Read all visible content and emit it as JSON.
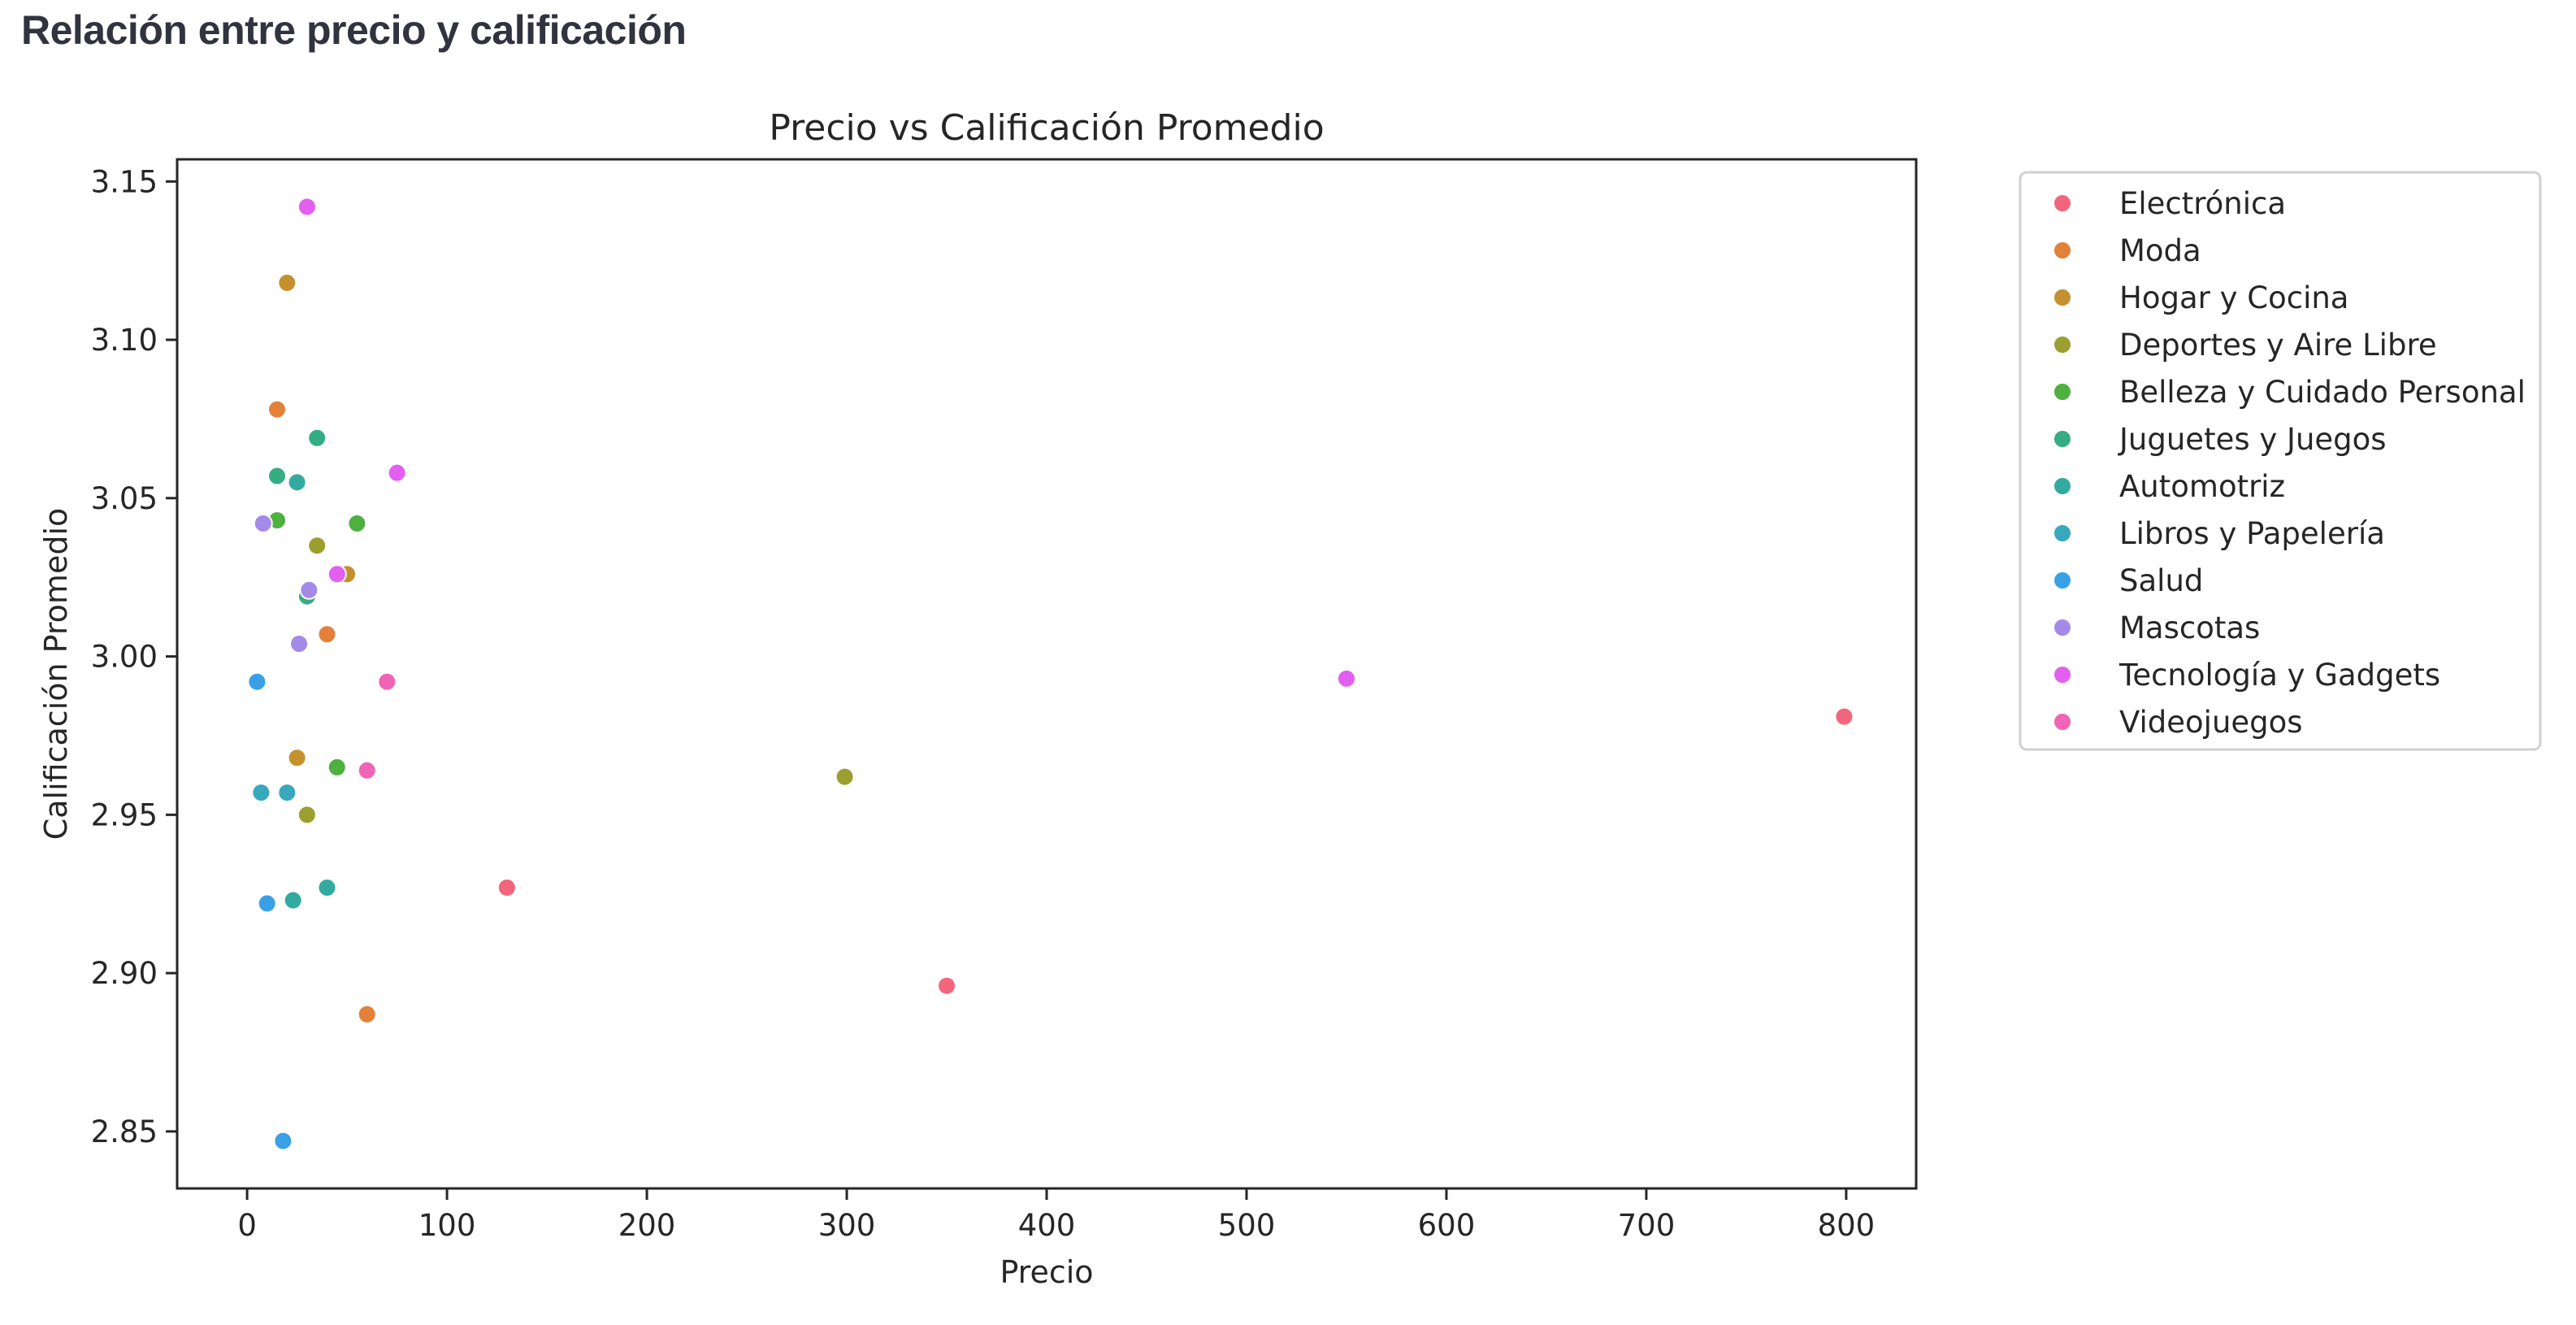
{
  "page": {
    "section_title": "Relación entre precio y calificación"
  },
  "chart_data": {
    "type": "scatter",
    "title": "Precio vs Calificación Promedio",
    "xlabel": "Precio",
    "ylabel": "Calificación Promedio",
    "xlim": [
      -35,
      835
    ],
    "ylim": [
      2.832,
      3.157
    ],
    "xticks": [
      0,
      100,
      200,
      300,
      400,
      500,
      600,
      700,
      800
    ],
    "yticks": [
      2.85,
      2.9,
      2.95,
      3.0,
      3.05,
      3.1,
      3.15
    ],
    "ytick_labels": [
      "2.85",
      "2.90",
      "2.95",
      "3.00",
      "3.05",
      "3.10",
      "3.15"
    ],
    "legend_position": "outside right, top",
    "grid": false,
    "series": [
      {
        "name": "Electrónica",
        "color": "#f1667c",
        "points": [
          [
            130,
            2.927
          ],
          [
            350,
            2.896
          ],
          [
            799,
            2.981
          ]
        ]
      },
      {
        "name": "Moda",
        "color": "#e38039",
        "points": [
          [
            15,
            3.078
          ],
          [
            40,
            3.007
          ],
          [
            60,
            2.887
          ]
        ]
      },
      {
        "name": "Hogar y Cocina",
        "color": "#c4912e",
        "points": [
          [
            20,
            3.118
          ],
          [
            50,
            3.026
          ],
          [
            25,
            2.968
          ]
        ]
      },
      {
        "name": "Deportes y Aire Libre",
        "color": "#9a9f2f",
        "points": [
          [
            35,
            3.035
          ],
          [
            30,
            2.95
          ],
          [
            299,
            2.962
          ]
        ]
      },
      {
        "name": "Belleza y Cuidado Personal",
        "color": "#4eb03f",
        "points": [
          [
            15,
            3.043
          ],
          [
            55,
            3.042
          ],
          [
            45,
            2.965
          ]
        ]
      },
      {
        "name": "Juguetes y Juegos",
        "color": "#35ad82",
        "points": [
          [
            35,
            3.069
          ],
          [
            15,
            3.057
          ],
          [
            30,
            3.019
          ]
        ]
      },
      {
        "name": "Automotriz",
        "color": "#33aaa0",
        "points": [
          [
            25,
            3.055
          ],
          [
            40,
            2.927
          ],
          [
            23,
            2.923
          ]
        ]
      },
      {
        "name": "Libros y Papelería",
        "color": "#38a8bc",
        "points": [
          [
            7,
            2.957
          ],
          [
            20,
            2.957
          ]
        ]
      },
      {
        "name": "Salud",
        "color": "#3aa0e6",
        "points": [
          [
            5,
            2.992
          ],
          [
            10,
            2.922
          ],
          [
            18,
            2.847
          ]
        ]
      },
      {
        "name": "Mascotas",
        "color": "#a48ae8",
        "points": [
          [
            8,
            3.042
          ],
          [
            31,
            3.021
          ],
          [
            26,
            3.004
          ]
        ]
      },
      {
        "name": "Tecnología y Gadgets",
        "color": "#e35ff0",
        "points": [
          [
            30,
            3.142
          ],
          [
            75,
            3.058
          ],
          [
            45,
            3.026
          ],
          [
            550,
            2.993
          ]
        ]
      },
      {
        "name": "Videojuegos",
        "color": "#f163b6",
        "points": [
          [
            70,
            2.992
          ],
          [
            60,
            2.964
          ]
        ]
      }
    ]
  }
}
